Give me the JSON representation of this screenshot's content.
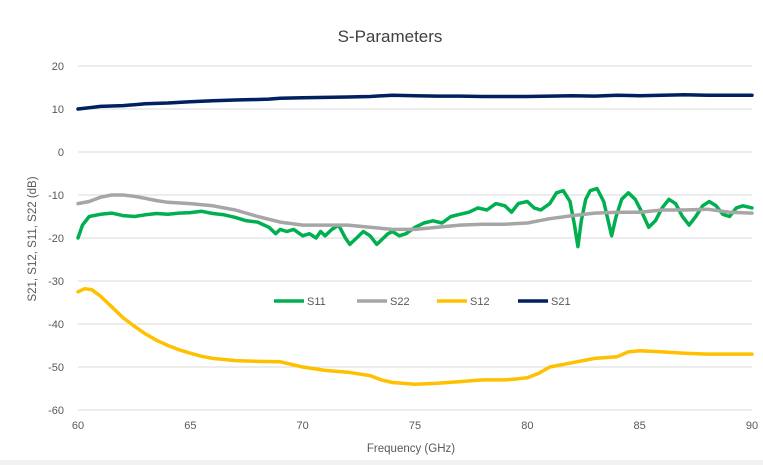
{
  "chart_data": {
    "type": "line",
    "title": "S-Parameters",
    "xlabel": "Frequency (GHz)",
    "ylabel": "S21, S12, S11, S22 (dB)",
    "xlim": [
      60,
      90
    ],
    "ylim": [
      -60,
      20
    ],
    "xticks": [
      60,
      65,
      70,
      75,
      80,
      85,
      90
    ],
    "yticks": [
      -60,
      -50,
      -40,
      -30,
      -20,
      -10,
      0,
      10,
      20
    ],
    "grid": "horizontal",
    "legend_placement": "center",
    "series": [
      {
        "name": "S11",
        "color": "#00b050",
        "points": [
          [
            60.0,
            -20
          ],
          [
            60.2,
            -17
          ],
          [
            60.5,
            -15
          ],
          [
            61.0,
            -14.5
          ],
          [
            61.5,
            -14.2
          ],
          [
            62.0,
            -14.8
          ],
          [
            62.5,
            -15
          ],
          [
            63.0,
            -14.6
          ],
          [
            63.5,
            -14.3
          ],
          [
            64.0,
            -14.5
          ],
          [
            64.5,
            -14.2
          ],
          [
            65.0,
            -14.1
          ],
          [
            65.5,
            -13.8
          ],
          [
            66.0,
            -14.3
          ],
          [
            66.5,
            -14.6
          ],
          [
            67.0,
            -15.2
          ],
          [
            67.5,
            -16.0
          ],
          [
            68.0,
            -16.3
          ],
          [
            68.5,
            -17.5
          ],
          [
            68.8,
            -19
          ],
          [
            69.0,
            -18
          ],
          [
            69.3,
            -18.5
          ],
          [
            69.6,
            -18
          ],
          [
            70.0,
            -19.5
          ],
          [
            70.3,
            -19
          ],
          [
            70.6,
            -20
          ],
          [
            70.8,
            -18.5
          ],
          [
            71.0,
            -19.5
          ],
          [
            71.3,
            -18
          ],
          [
            71.6,
            -17
          ],
          [
            71.9,
            -20
          ],
          [
            72.1,
            -21.5
          ],
          [
            72.4,
            -20
          ],
          [
            72.7,
            -18.5
          ],
          [
            73.0,
            -19.5
          ],
          [
            73.3,
            -21.5
          ],
          [
            73.6,
            -20
          ],
          [
            73.8,
            -19
          ],
          [
            74.0,
            -18.5
          ],
          [
            74.3,
            -19.5
          ],
          [
            74.6,
            -19
          ],
          [
            75.0,
            -17.5
          ],
          [
            75.4,
            -16.5
          ],
          [
            75.8,
            -16
          ],
          [
            76.2,
            -16.5
          ],
          [
            76.6,
            -15
          ],
          [
            77.0,
            -14.5
          ],
          [
            77.4,
            -14
          ],
          [
            77.8,
            -13
          ],
          [
            78.2,
            -13.5
          ],
          [
            78.6,
            -12
          ],
          [
            79.0,
            -12.5
          ],
          [
            79.3,
            -14
          ],
          [
            79.6,
            -12
          ],
          [
            80.0,
            -11.5
          ],
          [
            80.3,
            -13
          ],
          [
            80.6,
            -13.5
          ],
          [
            81.0,
            -12
          ],
          [
            81.3,
            -9.5
          ],
          [
            81.6,
            -9
          ],
          [
            81.9,
            -11.5
          ],
          [
            82.1,
            -17
          ],
          [
            82.25,
            -22
          ],
          [
            82.4,
            -16
          ],
          [
            82.6,
            -11
          ],
          [
            82.8,
            -9
          ],
          [
            83.1,
            -8.5
          ],
          [
            83.4,
            -11.5
          ],
          [
            83.6,
            -16
          ],
          [
            83.75,
            -19.5
          ],
          [
            83.95,
            -15
          ],
          [
            84.2,
            -11
          ],
          [
            84.5,
            -9.5
          ],
          [
            84.8,
            -11
          ],
          [
            85.1,
            -14
          ],
          [
            85.4,
            -17.5
          ],
          [
            85.7,
            -16
          ],
          [
            86.0,
            -13
          ],
          [
            86.3,
            -11
          ],
          [
            86.6,
            -12
          ],
          [
            86.9,
            -15
          ],
          [
            87.2,
            -17
          ],
          [
            87.5,
            -15
          ],
          [
            87.8,
            -12.5
          ],
          [
            88.1,
            -11.5
          ],
          [
            88.4,
            -12.5
          ],
          [
            88.7,
            -14.5
          ],
          [
            89.0,
            -15
          ],
          [
            89.3,
            -13
          ],
          [
            89.6,
            -12.5
          ],
          [
            90.0,
            -13
          ]
        ]
      },
      {
        "name": "S22",
        "color": "#a6a6a6",
        "points": [
          [
            60.0,
            -12
          ],
          [
            60.5,
            -11.5
          ],
          [
            61.0,
            -10.5
          ],
          [
            61.5,
            -10
          ],
          [
            62.0,
            -10
          ],
          [
            62.5,
            -10.3
          ],
          [
            63.0,
            -10.8
          ],
          [
            63.5,
            -11.3
          ],
          [
            64.0,
            -11.7
          ],
          [
            65.0,
            -12
          ],
          [
            66.0,
            -12.5
          ],
          [
            67.0,
            -13.5
          ],
          [
            68.0,
            -15
          ],
          [
            69.0,
            -16.3
          ],
          [
            70.0,
            -17
          ],
          [
            71.0,
            -17
          ],
          [
            72.0,
            -17
          ],
          [
            73.0,
            -17.5
          ],
          [
            74.0,
            -18
          ],
          [
            75.0,
            -18
          ],
          [
            76.0,
            -17.5
          ],
          [
            77.0,
            -17
          ],
          [
            78.0,
            -16.8
          ],
          [
            79.0,
            -16.8
          ],
          [
            80.0,
            -16.5
          ],
          [
            80.5,
            -16
          ],
          [
            81.0,
            -15.5
          ],
          [
            82.0,
            -14.8
          ],
          [
            83.0,
            -14.2
          ],
          [
            84.0,
            -14
          ],
          [
            85.0,
            -14
          ],
          [
            86.0,
            -13.5
          ],
          [
            87.0,
            -13.5
          ],
          [
            88.0,
            -13.3
          ],
          [
            89.0,
            -14
          ],
          [
            90.0,
            -14.2
          ]
        ]
      },
      {
        "name": "S12",
        "color": "#ffc000",
        "points": [
          [
            60.0,
            -32.5
          ],
          [
            60.3,
            -31.8
          ],
          [
            60.6,
            -32
          ],
          [
            61.0,
            -33.5
          ],
          [
            61.5,
            -36
          ],
          [
            62.0,
            -38.5
          ],
          [
            62.5,
            -40.5
          ],
          [
            63.0,
            -42.3
          ],
          [
            63.5,
            -43.8
          ],
          [
            64.0,
            -45
          ],
          [
            64.5,
            -46
          ],
          [
            65.0,
            -46.8
          ],
          [
            65.5,
            -47.5
          ],
          [
            66.0,
            -48
          ],
          [
            67.0,
            -48.5
          ],
          [
            68.0,
            -48.7
          ],
          [
            69.0,
            -48.8
          ],
          [
            70.0,
            -50
          ],
          [
            71.0,
            -50.8
          ],
          [
            72.0,
            -51.2
          ],
          [
            73.0,
            -52
          ],
          [
            73.5,
            -53
          ],
          [
            74.0,
            -53.6
          ],
          [
            75.0,
            -54
          ],
          [
            76.0,
            -53.8
          ],
          [
            77.0,
            -53.4
          ],
          [
            78.0,
            -53
          ],
          [
            79.0,
            -53
          ],
          [
            79.5,
            -52.8
          ],
          [
            80.0,
            -52.5
          ],
          [
            80.5,
            -51.5
          ],
          [
            81.0,
            -50
          ],
          [
            82.0,
            -49
          ],
          [
            83.0,
            -48
          ],
          [
            84.0,
            -47.6
          ],
          [
            84.5,
            -46.5
          ],
          [
            85.0,
            -46.2
          ],
          [
            86.0,
            -46.5
          ],
          [
            87.0,
            -46.8
          ],
          [
            88.0,
            -47
          ],
          [
            89.0,
            -47
          ],
          [
            90.0,
            -47
          ]
        ]
      },
      {
        "name": "S21",
        "color": "#002060",
        "points": [
          [
            60.0,
            10
          ],
          [
            60.5,
            10.3
          ],
          [
            61.0,
            10.6
          ],
          [
            61.5,
            10.7
          ],
          [
            62.0,
            10.8
          ],
          [
            62.5,
            11.0
          ],
          [
            63.0,
            11.2
          ],
          [
            64.0,
            11.4
          ],
          [
            65.0,
            11.7
          ],
          [
            66.0,
            11.9
          ],
          [
            67.0,
            12.1
          ],
          [
            68.0,
            12.2
          ],
          [
            68.5,
            12.3
          ],
          [
            69.0,
            12.5
          ],
          [
            70.0,
            12.6
          ],
          [
            71.0,
            12.7
          ],
          [
            72.0,
            12.8
          ],
          [
            73.0,
            12.9
          ],
          [
            74.0,
            13.2
          ],
          [
            75.0,
            13.1
          ],
          [
            76.0,
            13.0
          ],
          [
            77.0,
            13.0
          ],
          [
            78.0,
            12.9
          ],
          [
            79.0,
            12.9
          ],
          [
            80.0,
            12.9
          ],
          [
            81.0,
            13.0
          ],
          [
            82.0,
            13.1
          ],
          [
            83.0,
            13.0
          ],
          [
            84.0,
            13.2
          ],
          [
            85.0,
            13.1
          ],
          [
            86.0,
            13.2
          ],
          [
            87.0,
            13.3
          ],
          [
            88.0,
            13.2
          ],
          [
            89.0,
            13.2
          ],
          [
            90.0,
            13.2
          ]
        ]
      }
    ],
    "legend_order": [
      "S11",
      "S22",
      "S12",
      "S21"
    ]
  }
}
